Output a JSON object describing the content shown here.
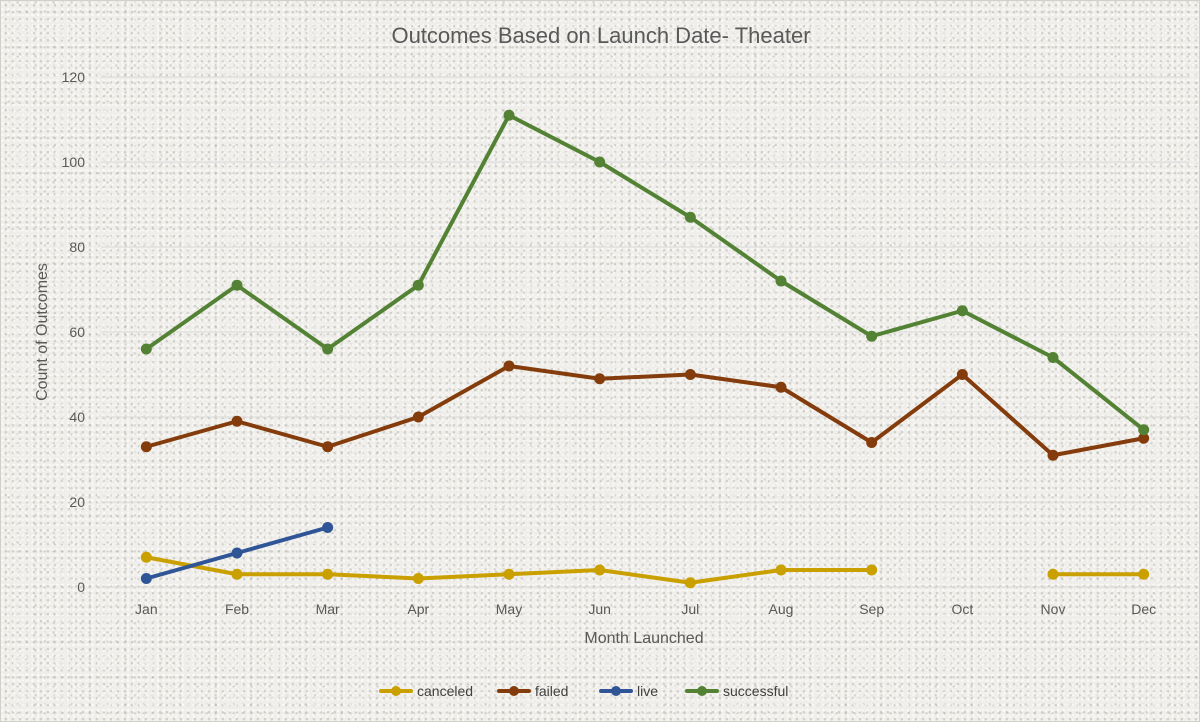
{
  "chart_data": {
    "type": "line",
    "title": "Outcomes Based on Launch Date- Theater",
    "xlabel": "Month Launched",
    "ylabel": "Count of Outcomes",
    "categories": [
      "Jan",
      "Feb",
      "Mar",
      "Apr",
      "May",
      "Jun",
      "Jul",
      "Aug",
      "Sep",
      "Oct",
      "Nov",
      "Dec"
    ],
    "ylim": [
      0,
      120
    ],
    "yticks": [
      0,
      20,
      40,
      60,
      80,
      100,
      120
    ],
    "grid": true,
    "legend_position": "bottom",
    "series": [
      {
        "name": "canceled",
        "color": "#c9a000",
        "values": [
          7,
          3,
          3,
          2,
          3,
          4,
          1,
          4,
          4,
          null,
          3,
          3
        ]
      },
      {
        "name": "failed",
        "color": "#843c0c",
        "values": [
          33,
          39,
          33,
          40,
          52,
          49,
          50,
          47,
          34,
          50,
          31,
          35
        ]
      },
      {
        "name": "live",
        "color": "#2f5597",
        "values": [
          2,
          8,
          14,
          null,
          null,
          null,
          null,
          null,
          null,
          null,
          null,
          null
        ]
      },
      {
        "name": "successful",
        "color": "#548235",
        "values": [
          56,
          71,
          56,
          71,
          111,
          100,
          87,
          72,
          59,
          65,
          54,
          37
        ]
      }
    ]
  }
}
